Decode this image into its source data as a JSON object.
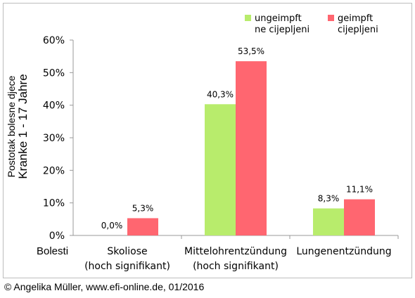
{
  "chart_data": {
    "type": "bar",
    "categories": [
      [
        "Skoliose",
        "(hoch signifikant)"
      ],
      [
        "Mittelohrentzündung",
        "(hoch signifikant)"
      ],
      [
        "Lungenentzündung"
      ]
    ],
    "series": [
      {
        "name": [
          "ungeimpft",
          "ne cijepljeni"
        ],
        "values": [
          0.0,
          40.3,
          8.3
        ],
        "labels": [
          "0,0%",
          "40,3%",
          "8,3%"
        ],
        "color": "#b8ec6c"
      },
      {
        "name": [
          "geimpft",
          "cijepljeni"
        ],
        "values": [
          5.3,
          53.5,
          11.1
        ],
        "labels": [
          "5,3%",
          "53,5%",
          "11,1%"
        ],
        "color": "#ff6670"
      }
    ],
    "ylim": [
      0,
      60
    ],
    "yticks": [
      0,
      10,
      20,
      30,
      40,
      50,
      60
    ],
    "ytick_labels": [
      "0%",
      "10%",
      "20%",
      "30%",
      "40%",
      "50%",
      "60%"
    ],
    "ylabel_line1": "Postotak bolesne djece",
    "ylabel_line2": "Kranke 1 - 17 Jahre",
    "xlabel": "Bolesti",
    "legend_position": "top-right",
    "grid": false
  },
  "footer": {
    "copyright": "© Angelika Müller, www.efi-online.de, 01/2016"
  }
}
